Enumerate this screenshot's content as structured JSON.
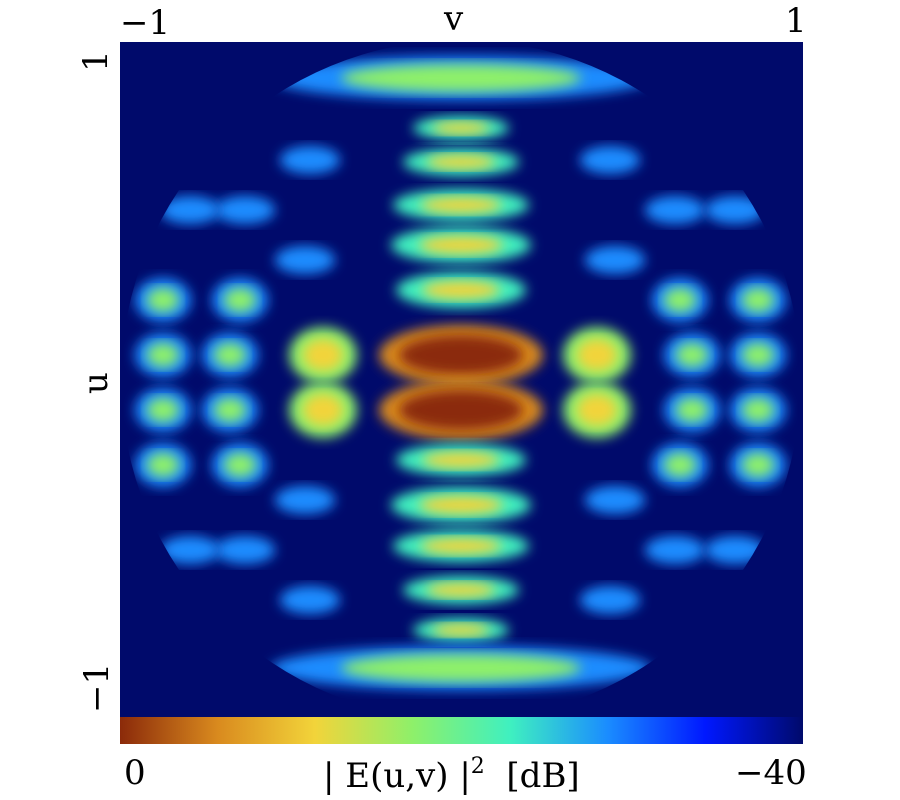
{
  "chart_data": {
    "type": "heatmap",
    "title": "",
    "xlabel": "v",
    "ylabel": "u",
    "x_ticks": [
      "−1",
      "1"
    ],
    "y_ticks": [
      "1",
      "−1"
    ],
    "xlim": [
      -1,
      1
    ],
    "ylim": [
      -1,
      1
    ],
    "colorbar": {
      "label_main": "| E(u,v) |",
      "label_sup": "2",
      "label_unit": "[dB]",
      "min_label": "0",
      "max_label": "−40",
      "range_db": [
        0,
        -40
      ],
      "colormap": [
        "#8b2a0a",
        "#d98a1e",
        "#f2d43a",
        "#8ef06a",
        "#3ff0c0",
        "#1a8cff",
        "#0018ff",
        "#000a6b"
      ]
    },
    "background_color": "#000a6b",
    "lobes_db": [
      {
        "u": 0.1,
        "v": 0.0,
        "db": 0
      },
      {
        "u": -0.07,
        "v": 0.0,
        "db": 0
      },
      {
        "u": 0.1,
        "v": -0.38,
        "db": -10
      },
      {
        "u": 0.1,
        "v": 0.38,
        "db": -10
      },
      {
        "u": -0.07,
        "v": -0.38,
        "db": -10
      },
      {
        "u": -0.07,
        "v": 0.38,
        "db": -10
      },
      {
        "u": 0.25,
        "v": 0.0,
        "db": -12
      },
      {
        "u": -0.22,
        "v": 0.0,
        "db": -12
      },
      {
        "u": 0.42,
        "v": 0.0,
        "db": -18
      },
      {
        "u": -0.39,
        "v": 0.0,
        "db": -18
      },
      {
        "u": 0.9,
        "v": 0.0,
        "db": -22
      }
    ]
  }
}
